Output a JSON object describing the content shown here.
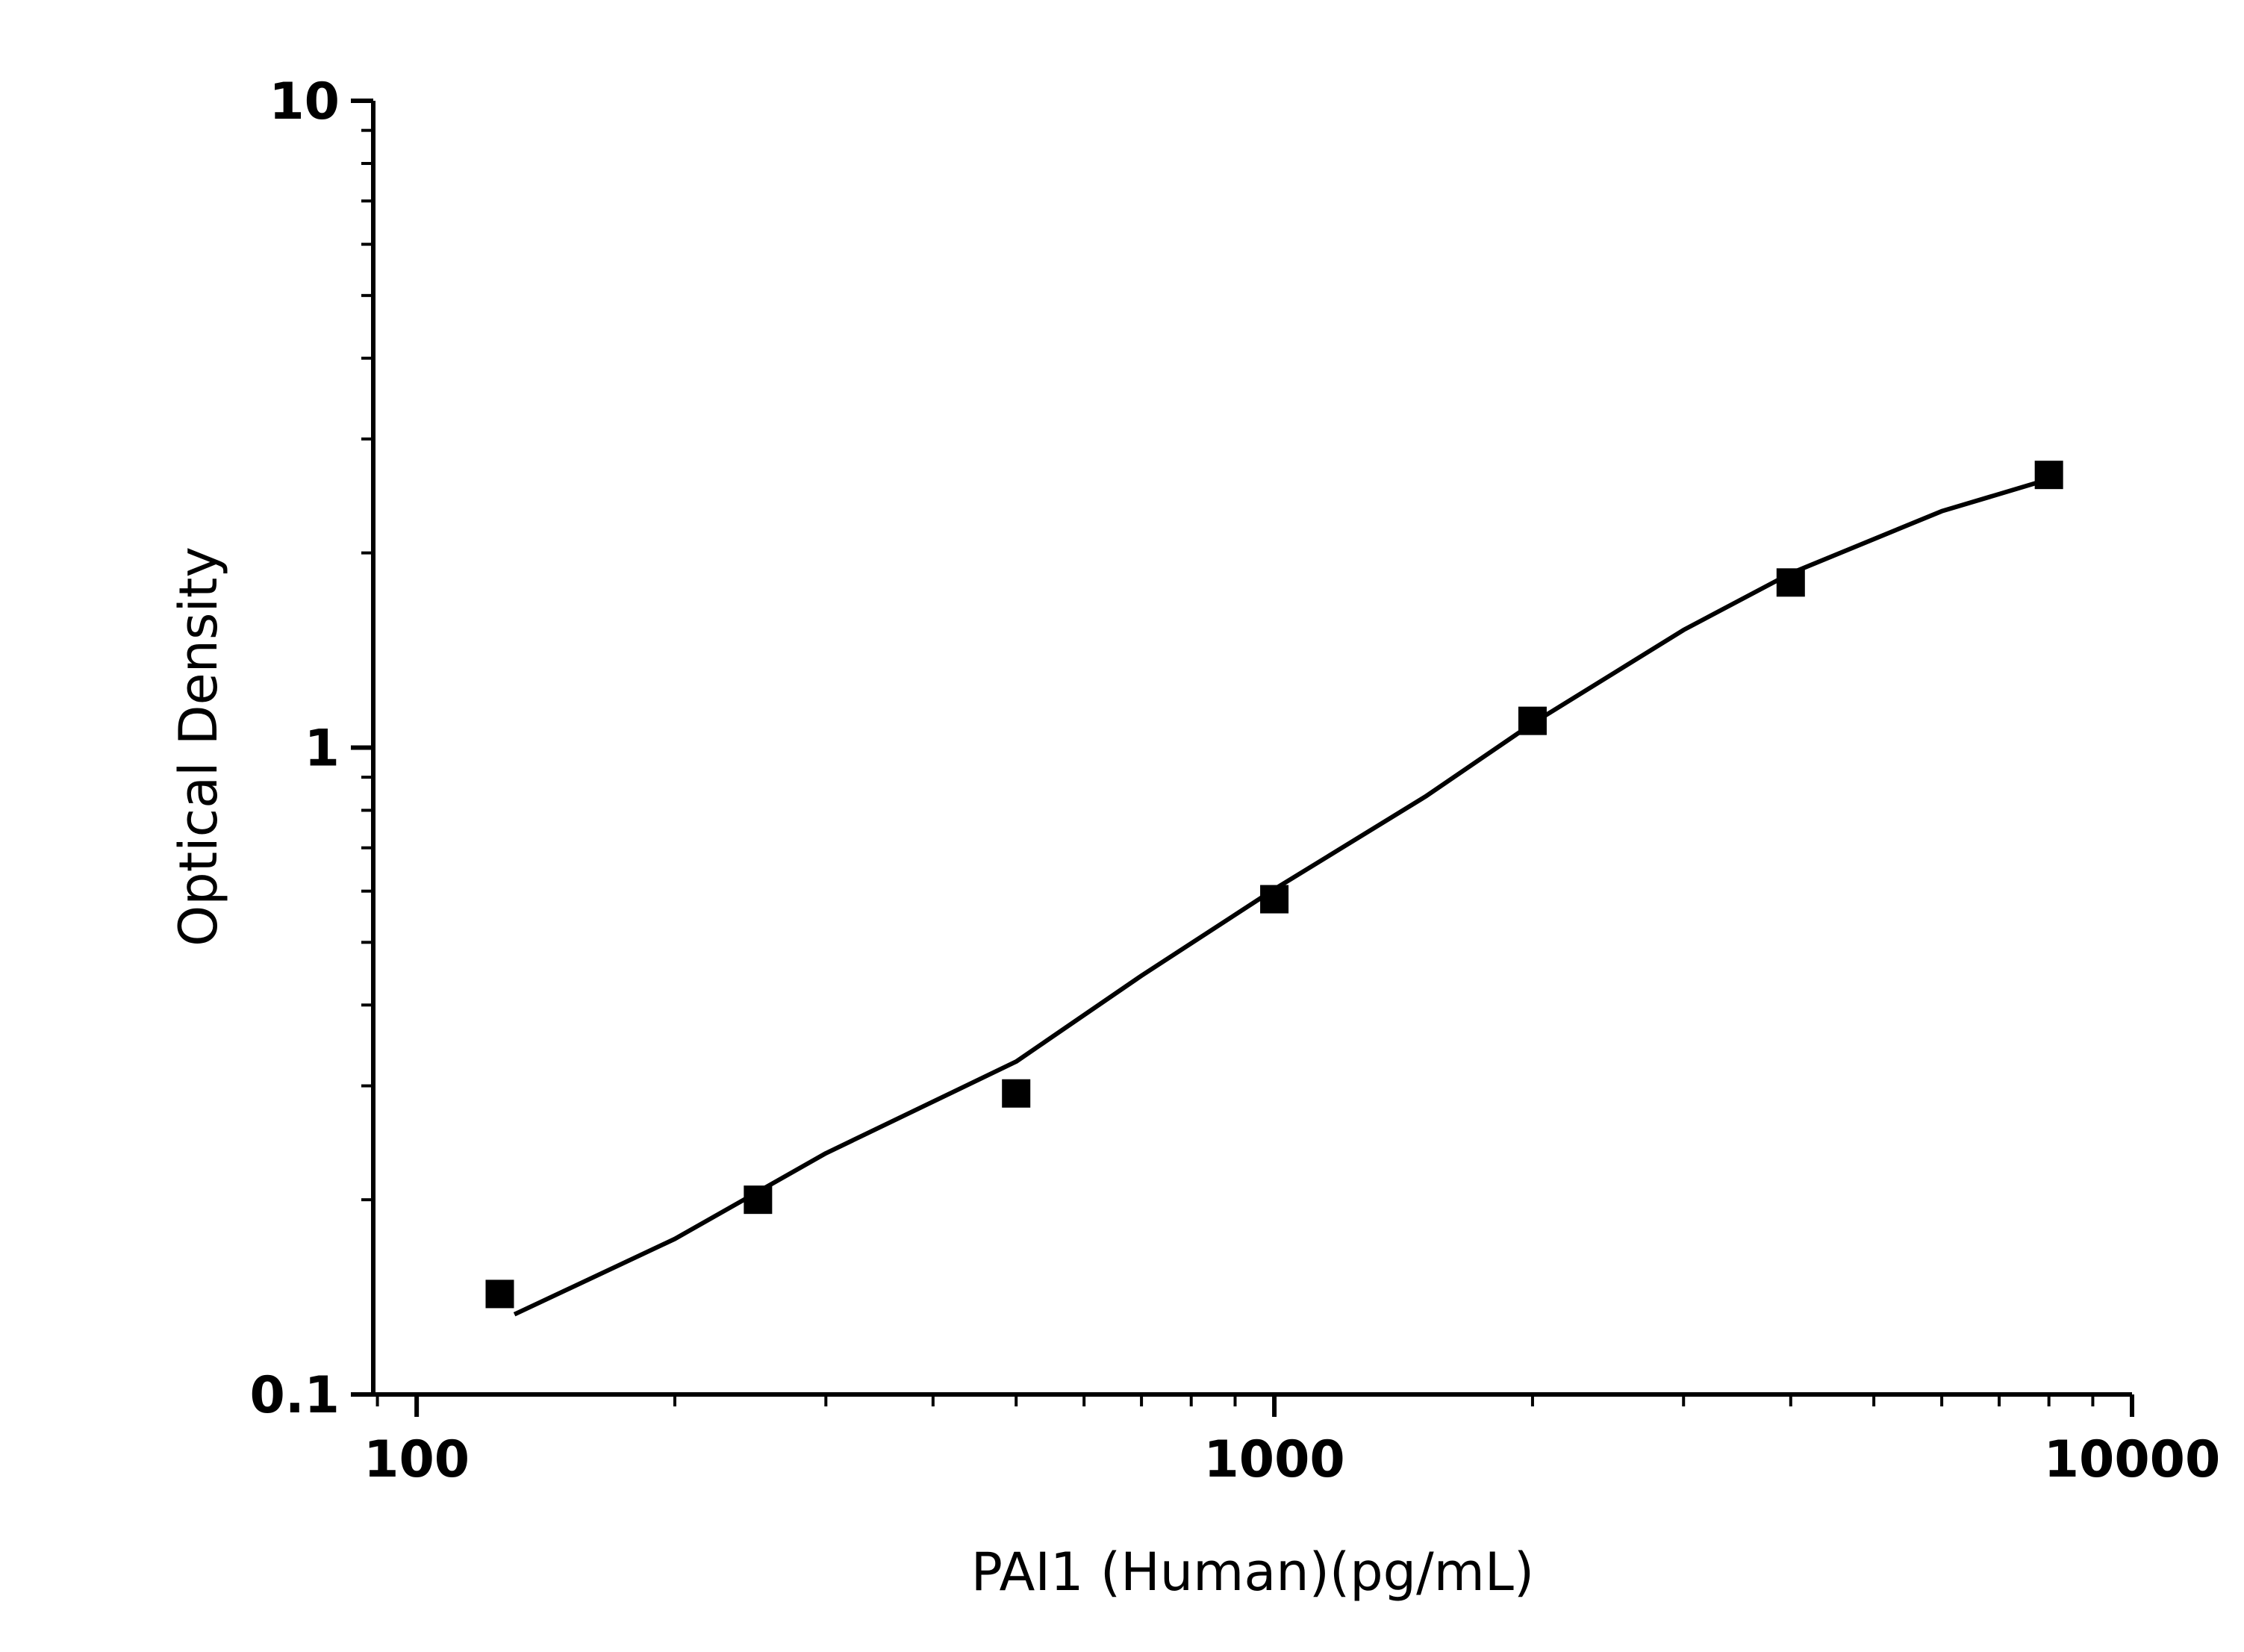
{
  "chart_data": {
    "type": "scatter",
    "xlabel": "PAI1 (Human)(pg/mL)",
    "ylabel": "Optical Density",
    "xscale": "log",
    "yscale": "log",
    "xlim": [
      89,
      10000
    ],
    "ylim": [
      0.1,
      10
    ],
    "xticks": [
      100,
      1000,
      10000
    ],
    "yticks": [
      0.1,
      1,
      10
    ],
    "series": [
      {
        "color": "#000000",
        "marker": "square",
        "x": [
          125,
          250,
          500,
          1000,
          2000,
          4000,
          8000
        ],
        "values": [
          0.143,
          0.2,
          0.292,
          0.583,
          1.1,
          1.8,
          2.64
        ]
      }
    ],
    "fit": {
      "color": "#000000",
      "x": [
        130,
        200,
        300,
        500,
        700,
        1000,
        1500,
        2000,
        3000,
        4000,
        6000,
        8000
      ],
      "values": [
        0.133,
        0.174,
        0.236,
        0.327,
        0.444,
        0.604,
        0.84,
        1.09,
        1.52,
        1.86,
        2.32,
        2.6
      ]
    }
  }
}
